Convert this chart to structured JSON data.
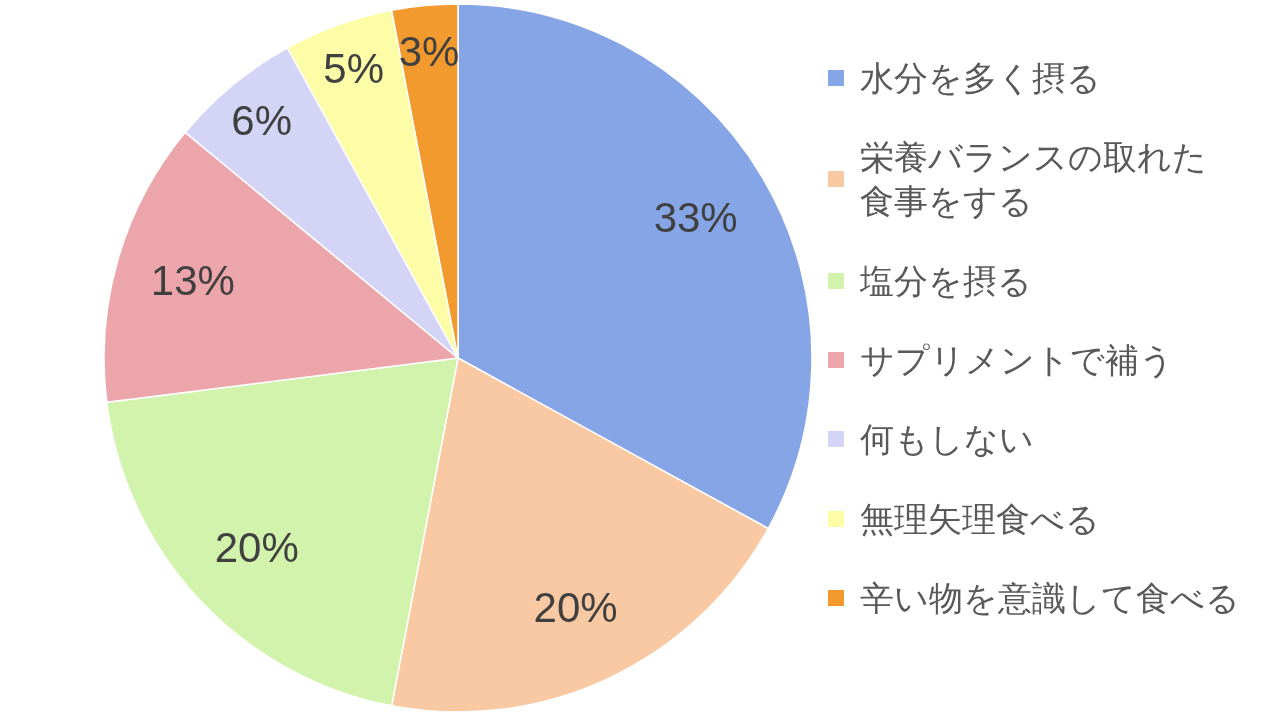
{
  "chart_data": {
    "type": "pie",
    "categories": [
      "水分を多く摂る",
      "栄養バランスの取れた食事をする",
      "塩分を摂る",
      "サプリメントで補う",
      "何もしない",
      "無理矢理食べる",
      "辛い物を意識して食べる"
    ],
    "values": [
      33,
      20,
      20,
      13,
      6,
      5,
      3
    ],
    "value_labels": [
      "33%",
      "20%",
      "20%",
      "13%",
      "6%",
      "5%",
      "3%"
    ],
    "colors": [
      "#86a5e6",
      "#f8c9a2",
      "#d2f3ac",
      "#eca5aa",
      "#d4d4f6",
      "#fdfda8",
      "#f29a2e"
    ],
    "legend": "right"
  }
}
